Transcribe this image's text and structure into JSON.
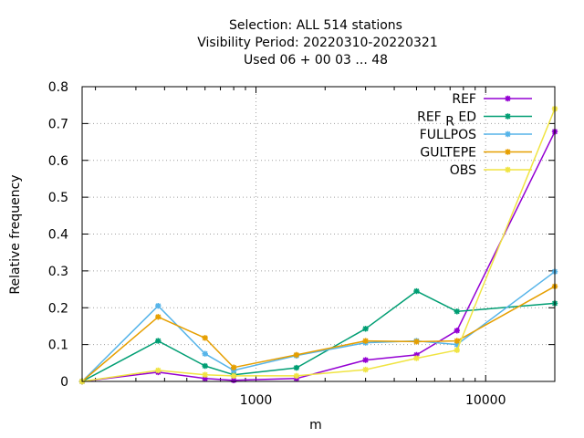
{
  "chart_data": {
    "type": "line",
    "title_lines": [
      "Selection: ALL     514 stations",
      "Visibility  Period: 20220310-20220321",
      "Used  06 + 00 03 ... 48"
    ],
    "xlabel": "m",
    "ylabel": "Relative frequency",
    "x_scale": "log",
    "xlim": [
      175,
      20000
    ],
    "ylim": [
      0,
      0.8
    ],
    "x_ticks": [
      {
        "value": 1000,
        "label": "1000"
      },
      {
        "value": 10000,
        "label": "10000"
      }
    ],
    "y_ticks": [
      {
        "value": 0,
        "label": "0"
      },
      {
        "value": 0.1,
        "label": "0.1"
      },
      {
        "value": 0.2,
        "label": "0.2"
      },
      {
        "value": 0.3,
        "label": "0.3"
      },
      {
        "value": 0.4,
        "label": "0.4"
      },
      {
        "value": 0.5,
        "label": "0.5"
      },
      {
        "value": 0.6,
        "label": "0.6"
      },
      {
        "value": 0.7,
        "label": "0.7"
      },
      {
        "value": 0.8,
        "label": "0.8"
      }
    ],
    "grid": true,
    "legend_position": "top-right",
    "x": [
      175,
      375,
      600,
      800,
      1500,
      3000,
      5000,
      7500,
      20000
    ],
    "series": [
      {
        "name": "REF",
        "name_parts": [
          "REF"
        ],
        "color": "#9400d3",
        "values": [
          0.0,
          0.025,
          0.008,
          0.003,
          0.008,
          0.058,
          0.072,
          0.138,
          0.678
        ]
      },
      {
        "name": "REF_RED",
        "name_parts": [
          "REF",
          "R",
          "ED"
        ],
        "color": "#009e73",
        "values": [
          0.0,
          0.11,
          0.042,
          0.018,
          0.037,
          0.143,
          0.245,
          0.19,
          0.212
        ]
      },
      {
        "name": "FULLPOS",
        "name_parts": [
          "FULLPOS"
        ],
        "color": "#56b4e9",
        "values": [
          0.0,
          0.205,
          0.075,
          0.03,
          0.07,
          0.105,
          0.11,
          0.1,
          0.298
        ]
      },
      {
        "name": "GULTEPE",
        "name_parts": [
          "GULTEPE"
        ],
        "color": "#e69f00",
        "values": [
          0.0,
          0.175,
          0.118,
          0.038,
          0.072,
          0.11,
          0.108,
          0.11,
          0.258
        ]
      },
      {
        "name": "OBS",
        "name_parts": [
          "OBS"
        ],
        "color": "#f0e442",
        "values": [
          0.0,
          0.03,
          0.018,
          0.015,
          0.015,
          0.032,
          0.063,
          0.085,
          0.74
        ]
      }
    ]
  }
}
